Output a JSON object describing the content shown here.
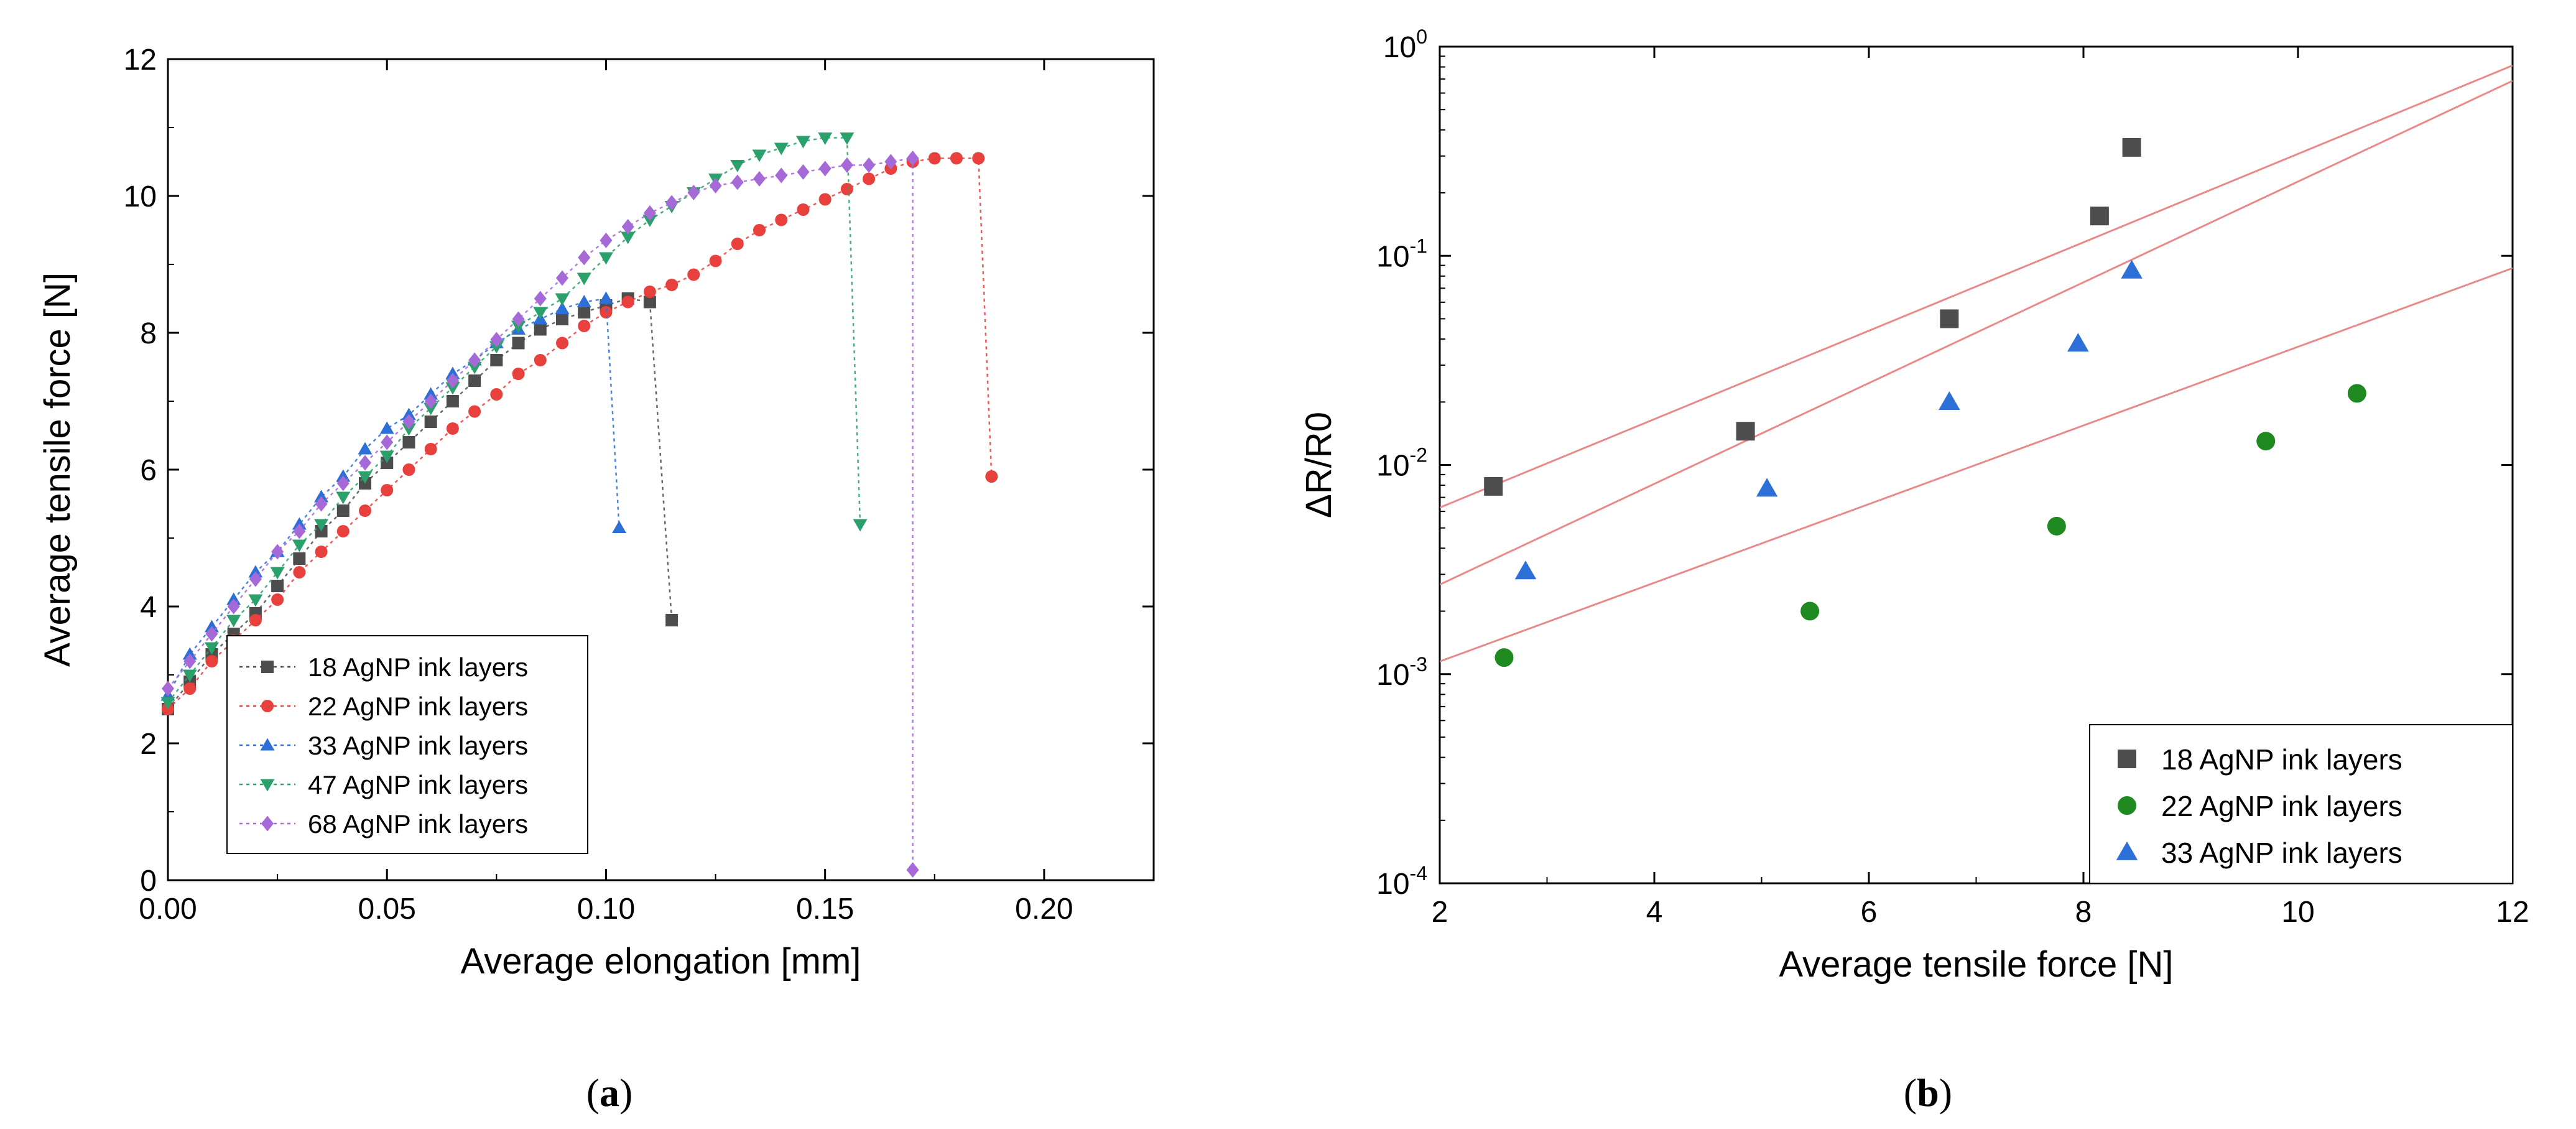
{
  "panels": [
    {
      "label_open": "(",
      "label_letter": "a",
      "label_close": ")"
    },
    {
      "label_open": "(",
      "label_letter": "b",
      "label_close": ")"
    }
  ],
  "chart_data": [
    {
      "type": "line",
      "xlabel": "Average elongation [mm]",
      "ylabel": "Average tensile force [N]",
      "xlim": [
        0,
        0.225
      ],
      "ylim": [
        0,
        12
      ],
      "x_ticks": [
        0.0,
        0.05,
        0.1,
        0.15,
        0.2
      ],
      "x_tick_labels": [
        "0.00",
        "0.05",
        "0.10",
        "0.15",
        "0.20"
      ],
      "y_ticks": [
        0,
        2,
        4,
        6,
        8,
        10,
        12
      ],
      "y_tick_labels": [
        "0",
        "2",
        "4",
        "6",
        "8",
        "10",
        "12"
      ],
      "grid": false,
      "legend_position": "bottom-left",
      "line_style": "dotted",
      "series": [
        {
          "name": "18 AgNP ink layers",
          "color": "#4d4d4d",
          "marker": "square",
          "x": [
            0.0,
            0.005,
            0.01,
            0.015,
            0.02,
            0.025,
            0.03,
            0.035,
            0.04,
            0.045,
            0.05,
            0.055,
            0.06,
            0.065,
            0.07,
            0.075,
            0.08,
            0.085,
            0.09,
            0.095,
            0.1,
            0.105,
            0.11,
            0.115
          ],
          "y": [
            2.5,
            2.9,
            3.3,
            3.6,
            3.9,
            4.3,
            4.7,
            5.1,
            5.4,
            5.8,
            6.1,
            6.4,
            6.7,
            7.0,
            7.3,
            7.6,
            7.85,
            8.05,
            8.2,
            8.3,
            8.4,
            8.5,
            8.45,
            3.8
          ]
        },
        {
          "name": "22 AgNP ink layers",
          "color": "#e8403c",
          "marker": "circle",
          "x": [
            0.0,
            0.005,
            0.01,
            0.015,
            0.02,
            0.025,
            0.03,
            0.035,
            0.04,
            0.045,
            0.05,
            0.055,
            0.06,
            0.065,
            0.07,
            0.075,
            0.08,
            0.085,
            0.09,
            0.095,
            0.1,
            0.105,
            0.11,
            0.115,
            0.12,
            0.125,
            0.13,
            0.135,
            0.14,
            0.145,
            0.15,
            0.155,
            0.16,
            0.165,
            0.17,
            0.175,
            0.18,
            0.185,
            0.188
          ],
          "y": [
            2.5,
            2.8,
            3.2,
            3.5,
            3.8,
            4.1,
            4.5,
            4.8,
            5.1,
            5.4,
            5.7,
            6.0,
            6.3,
            6.6,
            6.85,
            7.1,
            7.4,
            7.6,
            7.85,
            8.1,
            8.3,
            8.45,
            8.6,
            8.7,
            8.85,
            9.05,
            9.3,
            9.5,
            9.65,
            9.8,
            9.95,
            10.1,
            10.25,
            10.4,
            10.5,
            10.55,
            10.55,
            10.55,
            5.9
          ]
        },
        {
          "name": "33 AgNP ink layers",
          "color": "#2c6fd6",
          "marker": "triangle-up",
          "x": [
            0.0,
            0.005,
            0.01,
            0.015,
            0.02,
            0.025,
            0.03,
            0.035,
            0.04,
            0.045,
            0.05,
            0.055,
            0.06,
            0.065,
            0.07,
            0.075,
            0.08,
            0.085,
            0.09,
            0.095,
            0.1,
            0.103
          ],
          "y": [
            2.7,
            3.3,
            3.7,
            4.1,
            4.5,
            4.8,
            5.2,
            5.6,
            5.9,
            6.3,
            6.6,
            6.8,
            7.1,
            7.4,
            7.6,
            7.85,
            8.05,
            8.2,
            8.35,
            8.45,
            8.5,
            5.15
          ]
        },
        {
          "name": "47 AgNP ink layers",
          "color": "#2aa06b",
          "marker": "triangle-down",
          "x": [
            0.0,
            0.005,
            0.01,
            0.015,
            0.02,
            0.025,
            0.03,
            0.035,
            0.04,
            0.045,
            0.05,
            0.055,
            0.06,
            0.065,
            0.07,
            0.075,
            0.08,
            0.085,
            0.09,
            0.095,
            0.1,
            0.105,
            0.11,
            0.115,
            0.12,
            0.125,
            0.13,
            0.135,
            0.14,
            0.145,
            0.15,
            0.155,
            0.158
          ],
          "y": [
            2.6,
            3.0,
            3.4,
            3.8,
            4.1,
            4.5,
            4.9,
            5.2,
            5.6,
            5.9,
            6.2,
            6.6,
            6.9,
            7.2,
            7.5,
            7.8,
            8.1,
            8.3,
            8.5,
            8.8,
            9.1,
            9.4,
            9.65,
            9.85,
            10.05,
            10.25,
            10.45,
            10.6,
            10.7,
            10.8,
            10.85,
            10.85,
            5.2
          ]
        },
        {
          "name": "68 AgNP ink layers",
          "color": "#a569d8",
          "marker": "diamond",
          "x": [
            0.0,
            0.005,
            0.01,
            0.015,
            0.02,
            0.025,
            0.03,
            0.035,
            0.04,
            0.045,
            0.05,
            0.055,
            0.06,
            0.065,
            0.07,
            0.075,
            0.08,
            0.085,
            0.09,
            0.095,
            0.1,
            0.105,
            0.11,
            0.115,
            0.12,
            0.125,
            0.13,
            0.135,
            0.14,
            0.145,
            0.15,
            0.155,
            0.16,
            0.165,
            0.17,
            0.17
          ],
          "y": [
            2.8,
            3.2,
            3.6,
            4.0,
            4.4,
            4.8,
            5.1,
            5.5,
            5.8,
            6.1,
            6.4,
            6.7,
            7.0,
            7.3,
            7.6,
            7.9,
            8.2,
            8.5,
            8.8,
            9.1,
            9.35,
            9.55,
            9.75,
            9.9,
            10.05,
            10.15,
            10.2,
            10.25,
            10.3,
            10.35,
            10.4,
            10.45,
            10.45,
            10.5,
            10.55,
            0.15
          ]
        }
      ]
    },
    {
      "type": "scatter",
      "xlabel": "Average tensile force [N]",
      "ylabel": "ΔR/R0",
      "xlim": [
        2,
        12
      ],
      "ylim": [
        0.0001,
        1
      ],
      "y_scale": "log",
      "x_ticks": [
        2,
        4,
        6,
        8,
        10,
        12
      ],
      "x_tick_labels": [
        "2",
        "4",
        "6",
        "8",
        "10",
        "12"
      ],
      "y_ticks": [
        0.0001,
        0.001,
        0.01,
        0.1,
        1
      ],
      "y_tick_labels": [
        {
          "base": "10",
          "exp": "-4"
        },
        {
          "base": "10",
          "exp": "-3"
        },
        {
          "base": "10",
          "exp": "-2"
        },
        {
          "base": "10",
          "exp": "-1"
        },
        {
          "base": "10",
          "exp": "0"
        }
      ],
      "grid": false,
      "legend_position": "bottom-right",
      "fit_color": "#e88a8a",
      "series": [
        {
          "name": "18 AgNP ink layers",
          "color": "#4d4d4d",
          "marker": "square",
          "x": [
            2.5,
            4.85,
            6.75,
            8.15,
            8.45
          ],
          "y": [
            0.0079,
            0.0145,
            0.05,
            0.155,
            0.33
          ],
          "fit": [
            0.00798,
            0.0,
            0.14,
            2.5
          ]
        },
        {
          "name": "22 AgNP ink layers",
          "color": "#1f8a1f",
          "marker": "circle",
          "x": [
            2.6,
            5.45,
            7.75,
            9.7,
            10.55
          ],
          "y": [
            0.0012,
            0.002,
            0.0051,
            0.013,
            0.022
          ],
          "fit": [
            0.00115,
            0.0,
            0.0143,
            2.0
          ]
        },
        {
          "name": "33 AgNP ink layers",
          "color": "#2c6fd6",
          "marker": "triangle-up",
          "x": [
            2.8,
            5.05,
            6.75,
            7.95,
            8.45
          ],
          "y": [
            0.0031,
            0.0077,
            0.02,
            0.038,
            0.085
          ],
          "fit": [
            0.00268,
            0.0,
            0.072,
            2.0
          ]
        }
      ]
    }
  ]
}
